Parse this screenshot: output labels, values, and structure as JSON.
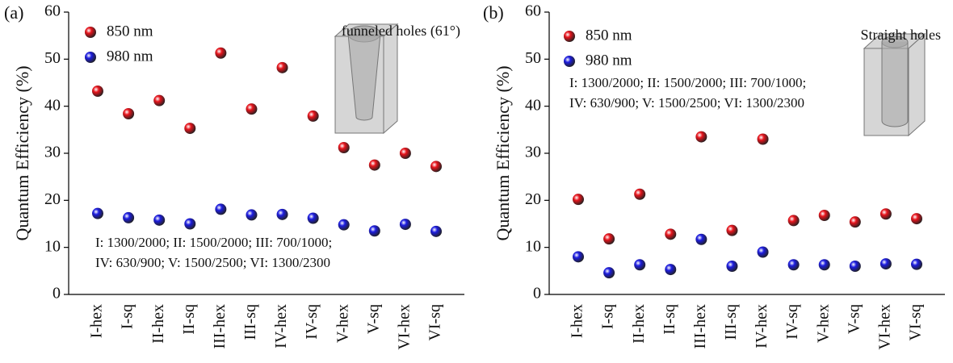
{
  "chart_data": [
    {
      "type": "scatter",
      "panel_label": "(a)",
      "subtitle": "funneled holes (61°)",
      "ylabel": "Quantum Efficiency (%)",
      "categories": [
        "I-hex",
        "I-sq",
        "II-hex",
        "II-sq",
        "III-hex",
        "III-sq",
        "IV-hex",
        "IV-sq",
        "V-hex",
        "V-sq",
        "VI-hex",
        "VI-sq"
      ],
      "series": [
        {
          "name": "850 nm",
          "color": "#e8141c",
          "values": [
            43.2,
            38.4,
            41.2,
            35.3,
            51.3,
            39.4,
            48.2,
            37.9,
            31.2,
            27.5,
            30.0,
            27.2
          ]
        },
        {
          "name": "980 nm",
          "color": "#1c1ce0",
          "values": [
            17.2,
            16.3,
            15.8,
            15.0,
            18.1,
            16.9,
            17.0,
            16.2,
            14.8,
            13.5,
            14.9,
            13.4
          ]
        }
      ],
      "annotation": [
        "I: 1300/2000; II: 1500/2000; III: 700/1000;",
        "IV: 630/900;  V: 1500/2500; VI: 1300/2300"
      ],
      "ylim": [
        0,
        60
      ],
      "yticks": [
        0,
        10,
        20,
        30,
        40,
        50,
        60
      ],
      "grid": false
    },
    {
      "type": "scatter",
      "panel_label": "(b)",
      "subtitle": "Straight holes",
      "ylabel": "Quantum Efficiency (%)",
      "categories": [
        "I-hex",
        "I-sq",
        "II-hex",
        "II-sq",
        "III-hex",
        "III-sq",
        "IV-hex",
        "IV-sq",
        "V-hex",
        "V-sq",
        "VI-hex",
        "VI-sq"
      ],
      "series": [
        {
          "name": "850 nm",
          "color": "#e8141c",
          "values": [
            20.2,
            11.8,
            21.3,
            12.8,
            33.5,
            13.6,
            33.0,
            15.7,
            16.8,
            15.4,
            17.1,
            16.1
          ]
        },
        {
          "name": "980 nm",
          "color": "#1c1ce0",
          "values": [
            8.0,
            4.6,
            6.3,
            5.3,
            11.7,
            6.0,
            9.0,
            6.3,
            6.3,
            6.0,
            6.5,
            6.4
          ]
        }
      ],
      "annotation": [
        "I: 1300/2000; II: 1500/2000; III: 700/1000;",
        "IV: 630/900;  V: 1500/2500; VI: 1300/2300"
      ],
      "ylim": [
        0,
        60
      ],
      "yticks": [
        0,
        10,
        20,
        30,
        40,
        50,
        60
      ],
      "grid": false
    }
  ]
}
